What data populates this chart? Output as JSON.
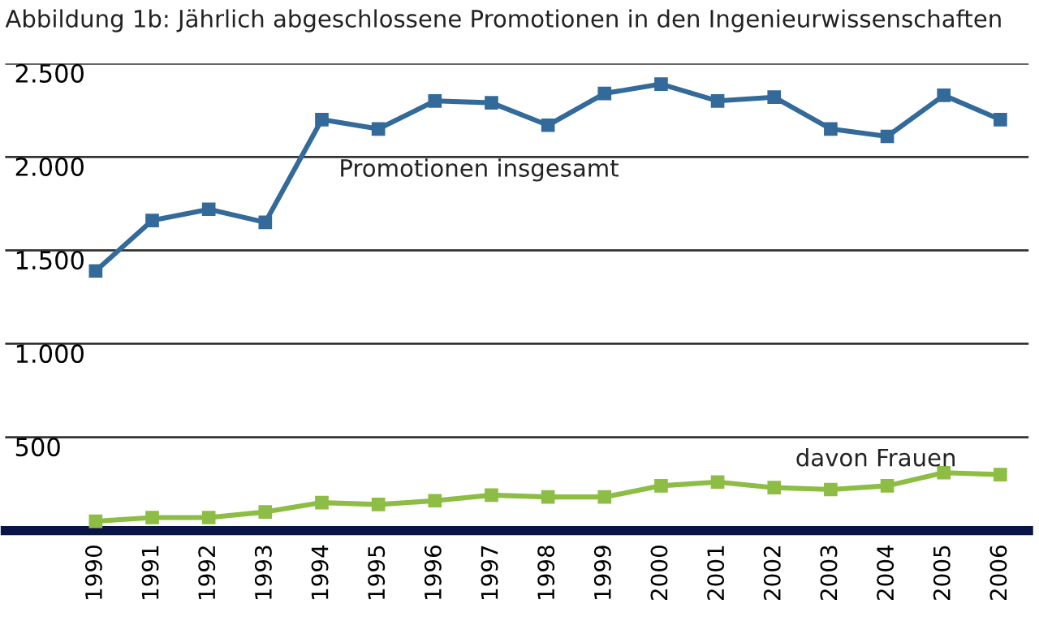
{
  "chart_data": {
    "type": "line",
    "title": "Abbildung 1b: Jährlich abgeschlossene Promotionen in den Ingenieurwissenschaften",
    "categories": [
      "1990",
      "1991",
      "1992",
      "1993",
      "1994",
      "1995",
      "1996",
      "1997",
      "1998",
      "1999",
      "2000",
      "2001",
      "2002",
      "2003",
      "2004",
      "2005",
      "2006"
    ],
    "series": [
      {
        "name": "Promotionen insgesamt",
        "color": "#336a9a",
        "values": [
          1390,
          1660,
          1720,
          1650,
          2200,
          2150,
          2300,
          2290,
          2170,
          2340,
          2390,
          2300,
          2320,
          2150,
          2110,
          2330,
          2200
        ]
      },
      {
        "name": "davon Frauen",
        "color": "#8dbd45",
        "values": [
          50,
          70,
          70,
          100,
          150,
          140,
          160,
          190,
          180,
          180,
          240,
          260,
          230,
          220,
          240,
          310,
          300
        ]
      }
    ],
    "ylim": [
      0,
      2500
    ],
    "yticks": [
      {
        "value": 0,
        "label": null
      },
      {
        "value": 500,
        "label": "500"
      },
      {
        "value": 1000,
        "label": "1.000"
      },
      {
        "value": 1500,
        "label": "1.500"
      },
      {
        "value": 2000,
        "label": "2.000"
      },
      {
        "value": 2500,
        "label": "2.500"
      }
    ],
    "grid": "y",
    "marker": "square",
    "line_style": "solid",
    "legend": false
  }
}
